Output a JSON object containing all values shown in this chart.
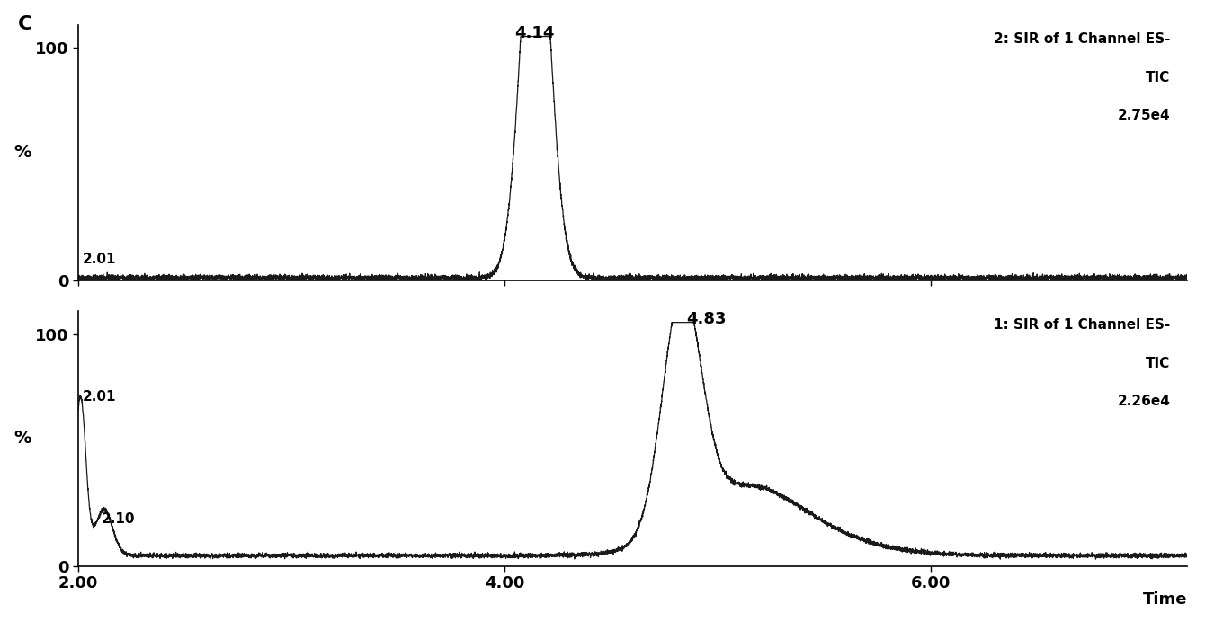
{
  "background_color": "#ffffff",
  "fig_label": "C",
  "top_panel": {
    "title_line1": "2: SIR of 1 Channel ES-",
    "title_line2": "TIC",
    "title_line3": "2.75e4",
    "peak_rt": 4.14,
    "peak_label": "4.14",
    "annotation_label": "2.01",
    "ylabel": "%",
    "xlim": [
      2.0,
      7.2
    ],
    "ylim": [
      0,
      110
    ],
    "yticks": [
      0,
      100
    ],
    "xticks": [
      2.0,
      4.0,
      6.0
    ],
    "xticklabels": [
      "2.00",
      "4.00",
      "6.00"
    ]
  },
  "bottom_panel": {
    "title_line1": "1: SIR of 1 Channel ES-",
    "title_line2": "TIC",
    "title_line3": "2.26e4",
    "peak_rt": 4.83,
    "peak_label": "4.83",
    "annotation_label1": "2.01",
    "annotation_label2": "2.10",
    "ylabel": "%",
    "xlabel": "Time",
    "xlim": [
      2.0,
      7.2
    ],
    "ylim": [
      0,
      110
    ],
    "yticks": [
      0,
      100
    ],
    "xticks": [
      2.0,
      4.0,
      6.0
    ],
    "xticklabels": [
      "2.00",
      "4.00",
      "6.00"
    ]
  },
  "line_color": "#1a1a1a",
  "noise_amplitude": 0.6,
  "noise_seed": 42
}
